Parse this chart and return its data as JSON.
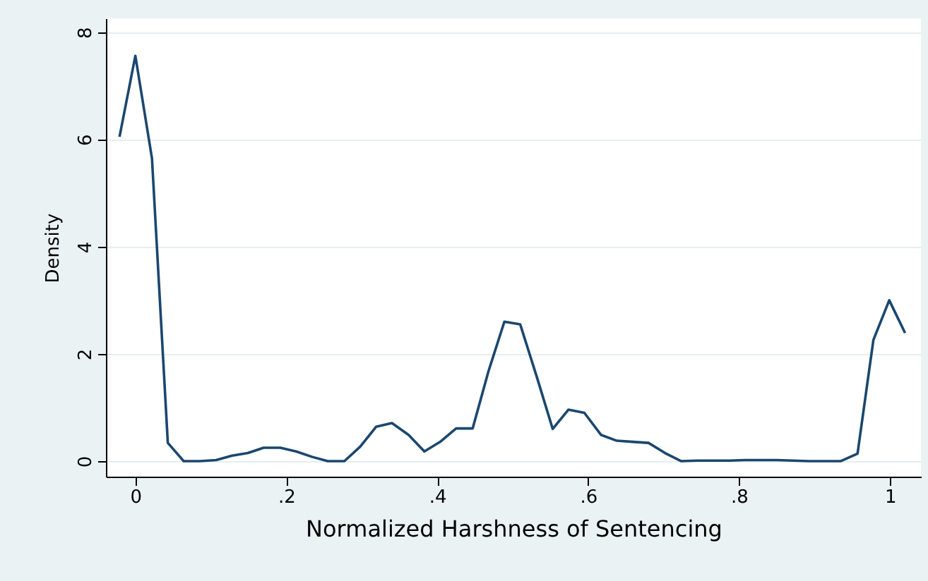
{
  "chart_data": {
    "type": "line",
    "xlabel": "Normalized Harshness of Sentencing",
    "ylabel": "Density",
    "x": [
      -0.021,
      0,
      0.022,
      0.043,
      0.064,
      0.085,
      0.107,
      0.128,
      0.149,
      0.17,
      0.192,
      0.213,
      0.234,
      0.255,
      0.277,
      0.298,
      0.319,
      0.34,
      0.362,
      0.383,
      0.404,
      0.425,
      0.447,
      0.468,
      0.489,
      0.51,
      0.532,
      0.553,
      0.574,
      0.595,
      0.617,
      0.638,
      0.659,
      0.68,
      0.702,
      0.723,
      0.744,
      0.765,
      0.787,
      0.808,
      0.829,
      0.85,
      0.872,
      0.893,
      0.914,
      0.935,
      0.957,
      0.978,
      0.999,
      1.02
    ],
    "series": [
      {
        "color": "#1a476f",
        "values": [
          6.05,
          7.56,
          5.65,
          0.34,
          0,
          0,
          0.02,
          0.1,
          0.15,
          0.25,
          0.25,
          0.18,
          0.08,
          0,
          0,
          0.27,
          0.64,
          0.71,
          0.49,
          0.18,
          0.36,
          0.61,
          0.61,
          1.68,
          2.6,
          2.55,
          1.57,
          0.6,
          0.96,
          0.9,
          0.49,
          0.38,
          0.36,
          0.34,
          0.15,
          0,
          0.01,
          0.01,
          0.01,
          0.02,
          0.02,
          0.02,
          0.01,
          0,
          0,
          0,
          0.14,
          2.26,
          3.0,
          2.39
        ]
      }
    ],
    "xlim": [
      -0.039,
      1.041
    ],
    "ylim": [
      -0.29,
      8.26
    ],
    "xticks": [
      {
        "value": 0,
        "label": "0"
      },
      {
        "value": 0.2,
        "label": ".2"
      },
      {
        "value": 0.4,
        "label": ".4"
      },
      {
        "value": 0.6,
        "label": ".6"
      },
      {
        "value": 0.8,
        "label": ".8"
      },
      {
        "value": 1,
        "label": "1"
      }
    ],
    "yticks": [
      0,
      2,
      4,
      6,
      8
    ],
    "grid": "y",
    "marker": "none",
    "line_style": "solid"
  }
}
